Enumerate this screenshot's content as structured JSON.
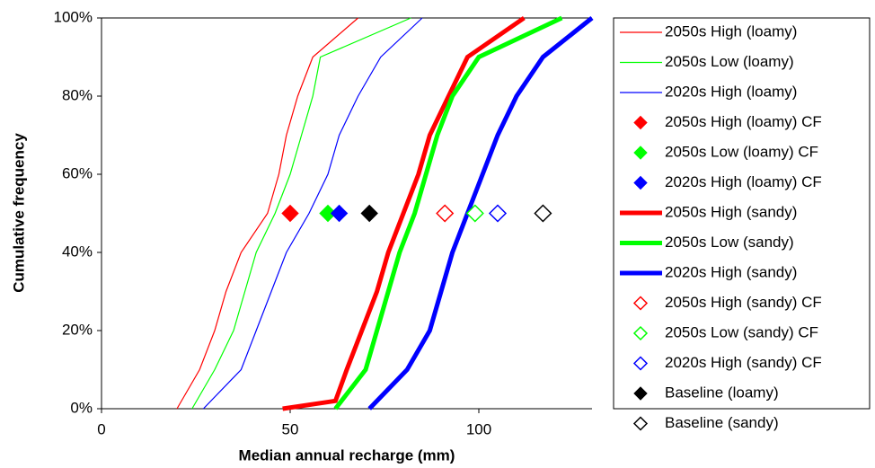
{
  "chart_data": {
    "type": "line",
    "xlabel": "Median annual recharge (mm)",
    "ylabel": "Cumulative frequency",
    "xlim": [
      0,
      130
    ],
    "xticks": [
      0,
      50,
      100
    ],
    "ylim": [
      0,
      100
    ],
    "yticks": [
      {
        "value": 0,
        "label": "0%"
      },
      {
        "value": 20,
        "label": "20%"
      },
      {
        "value": 40,
        "label": "40%"
      },
      {
        "value": 60,
        "label": "60%"
      },
      {
        "value": 80,
        "label": "80%"
      },
      {
        "value": 100,
        "label": "100%"
      }
    ],
    "grid": false,
    "series": [
      {
        "name": "2050s High (loamy)",
        "color": "#ff0000",
        "style": "thin-line",
        "x": [
          20,
          26,
          30,
          33,
          37,
          44,
          47,
          49,
          52,
          56,
          68
        ],
        "values": [
          0,
          10,
          20,
          30,
          40,
          50,
          60,
          70,
          80,
          90,
          100
        ]
      },
      {
        "name": "2050s Low (loamy)",
        "color": "#00ff00",
        "style": "thin-line",
        "x": [
          24,
          30,
          35,
          38,
          41,
          46,
          50,
          53,
          56,
          58,
          82
        ],
        "values": [
          0,
          10,
          20,
          30,
          40,
          50,
          60,
          70,
          80,
          90,
          100
        ]
      },
      {
        "name": "2020s High (loamy)",
        "color": "#0000ff",
        "style": "thin-line",
        "x": [
          27,
          37,
          41,
          45,
          49,
          55,
          60,
          63,
          68,
          74,
          85
        ],
        "values": [
          0,
          10,
          20,
          30,
          40,
          50,
          60,
          70,
          80,
          90,
          100
        ]
      },
      {
        "name": "2050s High (loamy) CF",
        "color": "#ff0000",
        "style": "filled-diamond",
        "x": [
          50
        ],
        "values": [
          50
        ]
      },
      {
        "name": "2050s Low (loamy) CF",
        "color": "#00ff00",
        "style": "filled-diamond",
        "x": [
          60
        ],
        "values": [
          50
        ]
      },
      {
        "name": "2020s High (loamy) CF",
        "color": "#0000ff",
        "style": "filled-diamond",
        "x": [
          63
        ],
        "values": [
          50
        ]
      },
      {
        "name": "2050s High (sandy)",
        "color": "#ff0000",
        "style": "thick-line",
        "x": [
          48,
          62,
          65,
          69,
          73,
          76,
          80,
          84,
          87,
          92,
          97,
          112
        ],
        "values": [
          0,
          2,
          10,
          20,
          30,
          40,
          50,
          60,
          70,
          80,
          90,
          100
        ]
      },
      {
        "name": "2050s Low (sandy)",
        "color": "#00ff00",
        "style": "thick-line",
        "x": [
          62,
          70,
          73,
          76,
          79,
          83,
          86,
          89,
          93,
          100,
          122
        ],
        "values": [
          0,
          10,
          20,
          30,
          40,
          50,
          60,
          70,
          80,
          90,
          100
        ]
      },
      {
        "name": "2020s High (sandy)",
        "color": "#0000ff",
        "style": "thick-line",
        "x": [
          71,
          81,
          87,
          90,
          93,
          97,
          101,
          105,
          110,
          117,
          130
        ],
        "values": [
          0,
          10,
          20,
          30,
          40,
          50,
          60,
          70,
          80,
          90,
          100
        ]
      },
      {
        "name": "2050s High (sandy) CF",
        "color": "#ff0000",
        "style": "open-diamond",
        "x": [
          91
        ],
        "values": [
          50
        ]
      },
      {
        "name": "2050s Low (sandy) CF",
        "color": "#00ff00",
        "style": "open-diamond",
        "x": [
          99
        ],
        "values": [
          50
        ]
      },
      {
        "name": "2020s High (sandy) CF",
        "color": "#0000ff",
        "style": "open-diamond",
        "x": [
          105
        ],
        "values": [
          50
        ]
      },
      {
        "name": "Baseline (loamy)",
        "color": "#000000",
        "style": "filled-diamond",
        "x": [
          71
        ],
        "values": [
          50
        ]
      },
      {
        "name": "Baseline (sandy)",
        "color": "#000000",
        "style": "open-diamond",
        "x": [
          117
        ],
        "values": [
          50
        ]
      }
    ]
  }
}
